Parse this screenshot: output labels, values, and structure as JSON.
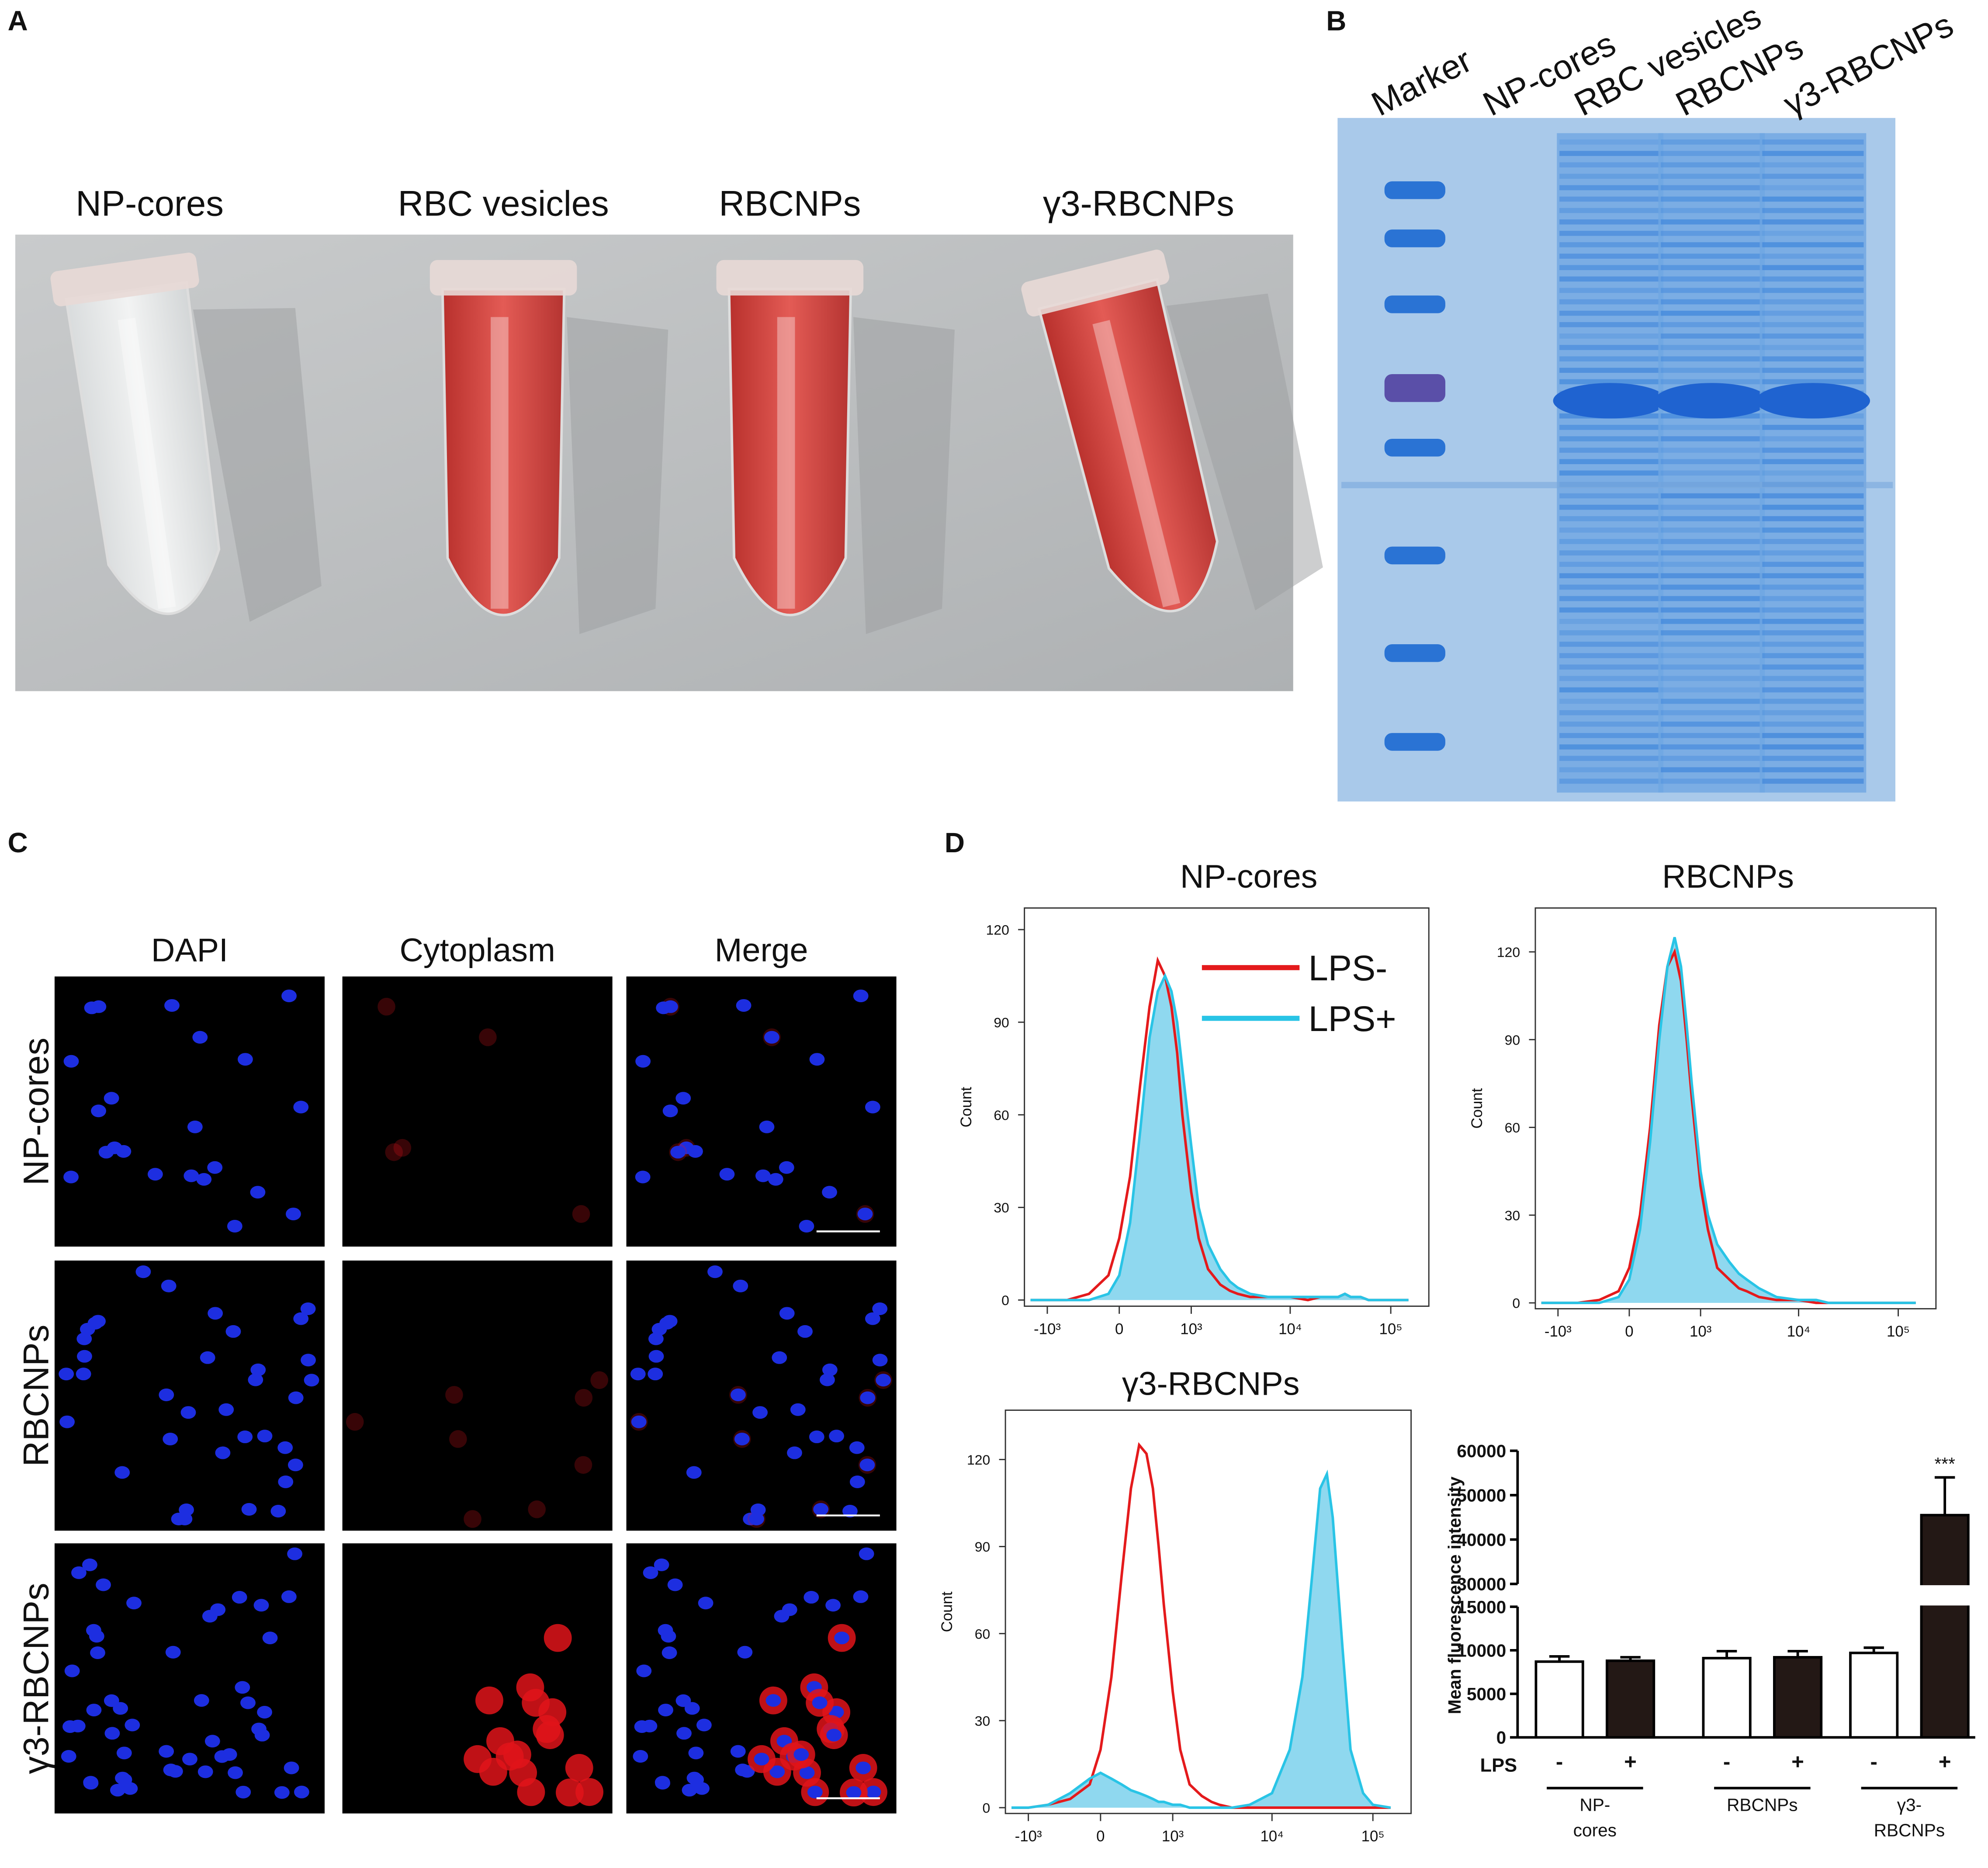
{
  "panels": [
    "A",
    "B",
    "C",
    "D"
  ],
  "tube_labels": [
    "NP-cores",
    "RBC vesicles",
    "RBCNPs",
    "γ3-RBCNPs"
  ],
  "gel_lanes": [
    "Marker",
    "NP-cores",
    "RBC vesicles",
    "RBCNPs",
    "γ3-RBCNPs"
  ],
  "microscopy": {
    "columns": [
      "DAPI",
      "Cytoplasm",
      "Merge"
    ],
    "rows": [
      "NP-cores",
      "RBCNPs",
      "γ3-RBCNPs"
    ]
  },
  "chart_data": [
    {
      "type": "line",
      "title": "NP-cores",
      "ylabel": "Count",
      "xscale": "biexponential",
      "legend": true,
      "x": [
        -1500,
        -1000,
        -600,
        -300,
        -100,
        0,
        100,
        200,
        300,
        400,
        500,
        600,
        700,
        800,
        1000,
        1200,
        1500,
        2000,
        2500,
        3000,
        4000,
        6000,
        10000,
        15000,
        20000,
        25000,
        30000,
        35000,
        40000,
        50000,
        60000,
        80000,
        100000,
        150000
      ],
      "xlim": [
        -1730,
        239000
      ],
      "xticks": [
        {
          "value": -1000,
          "label": "-10³"
        },
        0,
        {
          "value": 1000,
          "label": "10³"
        },
        {
          "value": 10000,
          "label": "10⁴"
        },
        {
          "value": 100000,
          "label": "10⁵"
        }
      ],
      "ylim": [
        -2,
        127
      ],
      "yticks": [
        0,
        30,
        60,
        90,
        120
      ],
      "series": [
        {
          "name": "LPS-",
          "color": "#e41a1c",
          "values": [
            0,
            0,
            0,
            2,
            8,
            20,
            40,
            70,
            95,
            110,
            105,
            95,
            80,
            60,
            35,
            20,
            10,
            5,
            3,
            2,
            1,
            1,
            1,
            0,
            1,
            1,
            1,
            2,
            1,
            1,
            0,
            0,
            0,
            0
          ]
        },
        {
          "name": "LPS+",
          "color": "#29c4e6",
          "fill": "#8fd8ef",
          "values": [
            0,
            0,
            0,
            0,
            2,
            8,
            25,
            55,
            85,
            100,
            105,
            100,
            90,
            75,
            50,
            30,
            18,
            10,
            6,
            4,
            2,
            1,
            1,
            1,
            1,
            1,
            1,
            2,
            1,
            1,
            0,
            0,
            0,
            0
          ]
        }
      ]
    },
    {
      "type": "line",
      "title": "RBCNPs",
      "ylabel": "Count",
      "xscale": "biexponential",
      "legend": false,
      "x": [
        -1500,
        -1000,
        -600,
        -300,
        -100,
        0,
        100,
        200,
        300,
        400,
        500,
        600,
        700,
        800,
        1000,
        1200,
        1500,
        2000,
        2500,
        3000,
        4000,
        6000,
        10000,
        15000,
        20000,
        25000,
        30000,
        35000,
        40000,
        50000,
        60000,
        80000,
        100000,
        150000
      ],
      "xlim": [
        -1730,
        239000
      ],
      "xticks": [
        {
          "value": -1000,
          "label": "-10³"
        },
        0,
        {
          "value": 1000,
          "label": "10³"
        },
        {
          "value": 10000,
          "label": "10⁴"
        },
        {
          "value": 100000,
          "label": "10⁵"
        }
      ],
      "ylim": [
        -2,
        135
      ],
      "yticks": [
        0,
        30,
        60,
        90,
        120
      ],
      "series": [
        {
          "name": "LPS-",
          "color": "#e41a1c",
          "values": [
            0,
            0,
            0,
            1,
            4,
            12,
            30,
            60,
            95,
            115,
            120,
            110,
            90,
            70,
            40,
            25,
            12,
            8,
            5,
            4,
            2,
            1,
            1,
            0,
            0,
            0,
            0,
            0,
            0,
            0,
            0,
            0,
            0,
            0
          ]
        },
        {
          "name": "LPS+",
          "color": "#29c4e6",
          "fill": "#8fd8ef",
          "values": [
            0,
            0,
            0,
            0,
            2,
            8,
            25,
            55,
            90,
            115,
            125,
            115,
            95,
            75,
            45,
            30,
            20,
            14,
            10,
            8,
            5,
            2,
            1,
            1,
            0,
            0,
            0,
            0,
            0,
            0,
            0,
            0,
            0,
            0
          ]
        }
      ]
    },
    {
      "type": "line",
      "title": "γ3-RBCNPs",
      "ylabel": "Count",
      "xscale": "biexponential",
      "legend": false,
      "x": [
        -1500,
        -1000,
        -600,
        -300,
        -100,
        0,
        100,
        200,
        300,
        400,
        500,
        600,
        700,
        800,
        1000,
        1200,
        1500,
        2000,
        2500,
        3000,
        4000,
        6000,
        10000,
        15000,
        20000,
        25000,
        30000,
        35000,
        40000,
        50000,
        60000,
        80000,
        100000,
        150000
      ],
      "xlim": [
        -1730,
        239000
      ],
      "xticks": [
        {
          "value": -1000,
          "label": "-10³"
        },
        0,
        {
          "value": 1000,
          "label": "10³"
        },
        {
          "value": 10000,
          "label": "10⁴"
        },
        {
          "value": 100000,
          "label": "10⁵"
        }
      ],
      "ylim": [
        -2,
        137
      ],
      "yticks": [
        0,
        30,
        60,
        90,
        120
      ],
      "series": [
        {
          "name": "LPS-",
          "color": "#e41a1c",
          "values": [
            0,
            0,
            1,
            3,
            8,
            20,
            45,
            80,
            110,
            125,
            122,
            110,
            90,
            70,
            40,
            20,
            8,
            4,
            2,
            1,
            0,
            0,
            0,
            0,
            0,
            0,
            0,
            0,
            0,
            0,
            0,
            0,
            0,
            0
          ]
        },
        {
          "name": "LPS+",
          "color": "#29c4e6",
          "fill": "#8fd8ef",
          "values": [
            0,
            0,
            1,
            5,
            10,
            12,
            10,
            8,
            6,
            5,
            4,
            3,
            2,
            2,
            1,
            1,
            0,
            0,
            0,
            0,
            0,
            1,
            5,
            20,
            45,
            80,
            110,
            115,
            100,
            55,
            20,
            5,
            1,
            0
          ]
        }
      ]
    },
    {
      "type": "bar",
      "ylabel": "Mean fluorescence intensity",
      "legend_title": "LPS",
      "ylim": [
        0,
        60000
      ],
      "ybreak": [
        15000,
        30000
      ],
      "yticks": [
        0,
        5000,
        10000,
        15000,
        30000,
        40000,
        50000,
        60000
      ],
      "categories": [
        [
          "NP-",
          "cores"
        ],
        [
          "RBCNPs"
        ],
        [
          "γ3-",
          "RBCNPs"
        ]
      ],
      "series": [
        {
          "name": "-",
          "color": "#ffffff",
          "values": [
            8700,
            9100,
            9700
          ],
          "errors": [
            600,
            800,
            600
          ],
          "significance": [
            null,
            null,
            null
          ]
        },
        {
          "name": "+",
          "color": "#231815",
          "values": [
            8800,
            9200,
            45500
          ],
          "errors": [
            400,
            700,
            8500
          ],
          "significance": [
            null,
            null,
            "***"
          ]
        }
      ]
    }
  ]
}
